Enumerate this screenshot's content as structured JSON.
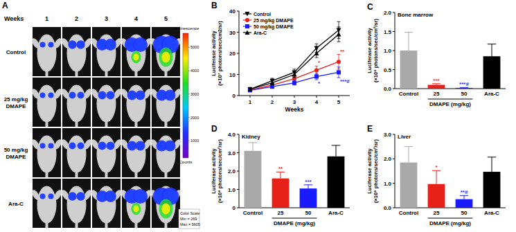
{
  "panel_a": {
    "panel": "A",
    "weeks_label": "Weeks",
    "weeks": [
      1,
      2,
      3,
      4,
      5
    ],
    "groups": [
      "Control",
      "25 mg/kg DMAPE",
      "50 mg/kg DMAPE",
      "Ara-C"
    ],
    "colorbar": {
      "title": "Luminescence",
      "range": [
        269,
        5605
      ],
      "ticks": [
        1000,
        2000,
        3000,
        4000,
        5000
      ],
      "unit": "Counts",
      "scale_labels": [
        "Color Scale",
        "Min = 269",
        "Max = 5605"
      ]
    }
  },
  "chart_data": [
    {
      "type": "line",
      "panel": "B",
      "xlabel": "Weeks",
      "ylabel": [
        "Luciferase activity",
        "(×10⁷ photons/sec/cm2/sr)"
      ],
      "x": [
        1,
        2,
        3,
        4,
        5
      ],
      "xlim": [
        0.5,
        5.5
      ],
      "xticks": [
        1,
        2,
        3,
        4,
        5
      ],
      "ylim": [
        0,
        40
      ],
      "yticks": [
        0,
        10,
        20,
        30,
        40
      ],
      "legend": "top-left",
      "series": [
        {
          "name": "Control",
          "color": "#000000",
          "marker": "triangle-down",
          "values": [
            3,
            7,
            11,
            22.5,
            31
          ],
          "errors": [
            0.6,
            1.2,
            1.5,
            2,
            4
          ],
          "significance": [
            null,
            null,
            null,
            null,
            null
          ]
        },
        {
          "name": "25 mg/kg DMAPE",
          "color": "#e8201a",
          "marker": "circle",
          "values": [
            2.6,
            5,
            8,
            12,
            16
          ],
          "errors": [
            0.5,
            0.8,
            1.2,
            2,
            3.5
          ],
          "significance": [
            null,
            null,
            null,
            "*",
            "**"
          ]
        },
        {
          "name": "50 mg/kg DMAPE",
          "color": "#1a1aff",
          "marker": "square",
          "values": [
            2.5,
            4.2,
            6,
            9,
            11
          ],
          "errors": [
            0.5,
            0.7,
            1,
            1.5,
            2.5
          ],
          "significance": [
            null,
            null,
            null,
            "*",
            "***#"
          ]
        },
        {
          "name": "Ara-C",
          "color": "#000000",
          "marker": "triangle-up",
          "values": [
            3,
            6,
            10,
            20,
            29
          ],
          "errors": [
            0.6,
            1,
            1.5,
            2,
            3.5
          ],
          "significance": [
            null,
            null,
            null,
            null,
            null
          ]
        }
      ]
    },
    {
      "type": "bar",
      "panel": "C",
      "title": "Bone marrow",
      "ylabel": [
        "Luciferase activity",
        "(×10⁶ photons/sec/cm²/sr)"
      ],
      "categories": [
        "Control",
        "25",
        "50",
        "Ara-C"
      ],
      "group_label": "DMAPE (mg/kg)",
      "group_members": [
        1,
        2
      ],
      "values": [
        1.0,
        0.1,
        0.02,
        0.85
      ],
      "errors": [
        0.48,
        0.03,
        0.01,
        0.32
      ],
      "colors": [
        "#a9a9a9",
        "#e8201a",
        "#1a1aff",
        "#000000"
      ],
      "significance": [
        null,
        "***",
        "***#",
        null
      ],
      "ylim": [
        0,
        2
      ],
      "yticks": [
        {
          "value": 0,
          "label": "0.0"
        },
        {
          "value": 0.5,
          "label": "0.5"
        },
        {
          "value": 1,
          "label": "1.0"
        },
        {
          "value": 1.5,
          "label": "1.5"
        },
        {
          "value": 2,
          "label": "2.0"
        }
      ]
    },
    {
      "type": "bar",
      "panel": "D",
      "title": "Kidney",
      "ylabel": [
        "Luciferase activity",
        "(×10⁶ photons/sec/cm²/sr)"
      ],
      "categories": [
        "Control",
        "25",
        "50",
        "Ara-C"
      ],
      "group_label": "DMAPE (mg/kg)",
      "group_members": [
        1,
        2
      ],
      "values": [
        3.1,
        1.6,
        1.05,
        2.8
      ],
      "errors": [
        0.45,
        0.35,
        0.2,
        0.6
      ],
      "colors": [
        "#a9a9a9",
        "#e8201a",
        "#1a1aff",
        "#000000"
      ],
      "significance": [
        null,
        "**",
        "***",
        null
      ],
      "ylim": [
        0,
        4
      ],
      "yticks": [
        0,
        {
          "value": 1,
          "label": "1.0"
        },
        {
          "value": 2,
          "label": "2.0"
        },
        {
          "value": 3,
          "label": "3.0"
        },
        {
          "value": 4,
          "label": "4.0"
        }
      ]
    },
    {
      "type": "bar",
      "panel": "E",
      "title": "Liver",
      "ylabel": [
        "Luciferase activity",
        "(×10⁶ photons/sec/cm²/sr)"
      ],
      "categories": [
        "Control",
        "25",
        "50",
        "Ara-C"
      ],
      "group_label": "DMAPE (mg/kg)",
      "group_members": [
        1,
        2
      ],
      "values": [
        1.85,
        0.97,
        0.35,
        1.47
      ],
      "errors": [
        0.65,
        0.55,
        0.15,
        0.6
      ],
      "colors": [
        "#a9a9a9",
        "#e8201a",
        "#1a1aff",
        "#000000"
      ],
      "significance": [
        null,
        "*",
        "**#",
        null
      ],
      "ylim": [
        0,
        3
      ],
      "yticks": [
        {
          "value": 0,
          "label": "0.0"
        },
        {
          "value": 1,
          "label": "1.0"
        },
        {
          "value": 2,
          "label": "2.0"
        },
        {
          "value": 3,
          "label": "3.0"
        }
      ]
    }
  ]
}
